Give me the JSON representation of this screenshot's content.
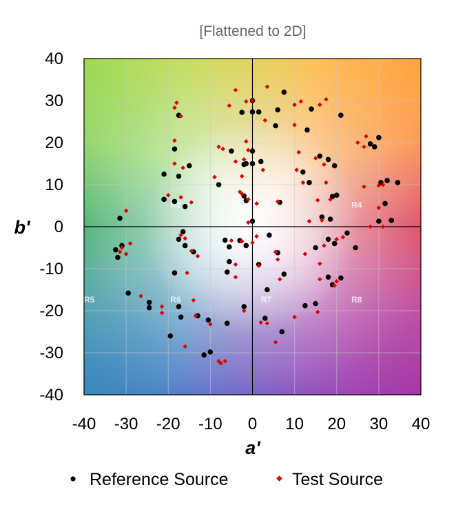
{
  "chart_data": {
    "type": "scatter",
    "title": "",
    "subtitle": "[Flattened to 2D]",
    "xlabel": "a'",
    "ylabel": "b'",
    "xlim": [
      -40,
      40
    ],
    "ylim": [
      -40,
      40
    ],
    "xticks": [
      "-40",
      "-30",
      "-20",
      "-10",
      "0",
      "10",
      "20",
      "30",
      "40"
    ],
    "yticks": [
      "40",
      "30",
      "20",
      "10",
      "0",
      "-10",
      "-20",
      "-30",
      "-40"
    ],
    "grid": true,
    "legend_position": "bottom",
    "region_labels": [
      {
        "text": "R2",
        "x": -19.5,
        "y": 4.5
      },
      {
        "text": "R3",
        "x": 1,
        "y": 4.5
      },
      {
        "text": "R4",
        "x": 23.5,
        "y": 4.5
      },
      {
        "text": "R5",
        "x": -40,
        "y": -18
      },
      {
        "text": "R6",
        "x": -19.5,
        "y": -18
      },
      {
        "text": "R7",
        "x": 2,
        "y": -18
      },
      {
        "text": "R8",
        "x": 23.5,
        "y": -18
      }
    ],
    "series": [
      {
        "name": "Reference Source",
        "marker": "circle",
        "color": "#000000",
        "points": [
          [
            7.5,
            32
          ],
          [
            0,
            30
          ],
          [
            -2.5,
            27.2
          ],
          [
            0,
            27.3
          ],
          [
            1.5,
            27.3
          ],
          [
            6,
            27.8
          ],
          [
            14,
            28
          ],
          [
            21,
            26.5
          ],
          [
            -17.5,
            26.5
          ],
          [
            13,
            23
          ],
          [
            5.5,
            24
          ],
          [
            28,
            19.7
          ],
          [
            30,
            21.2
          ],
          [
            29,
            19
          ],
          [
            -5,
            18
          ],
          [
            -18.5,
            18.5
          ],
          [
            0,
            18
          ],
          [
            -15,
            14.5
          ],
          [
            -2,
            14.8
          ],
          [
            -1.5,
            15
          ],
          [
            0,
            15
          ],
          [
            2,
            15.5
          ],
          [
            16,
            16.8
          ],
          [
            18,
            16
          ],
          [
            19.5,
            14.5
          ],
          [
            -21,
            12.5
          ],
          [
            -17.5,
            12
          ],
          [
            -8,
            10
          ],
          [
            12,
            13
          ],
          [
            13.5,
            10.5
          ],
          [
            30.5,
            10.5
          ],
          [
            32,
            11
          ],
          [
            34.5,
            10.5
          ],
          [
            -21,
            6.5
          ],
          [
            -18.5,
            6
          ],
          [
            -16,
            4.8
          ],
          [
            -2,
            7.3
          ],
          [
            -1.5,
            6.2
          ],
          [
            6.5,
            5.8
          ],
          [
            19,
            7.2
          ],
          [
            20,
            7.5
          ],
          [
            31.5,
            5.5
          ],
          [
            -31.5,
            2
          ],
          [
            0,
            1.3
          ],
          [
            16.5,
            2.3
          ],
          [
            18.5,
            1.8
          ],
          [
            33,
            1.5
          ],
          [
            30,
            1.3
          ],
          [
            -16.5,
            -1.2
          ],
          [
            -17.5,
            -3
          ],
          [
            -16,
            -4.5
          ],
          [
            -6.5,
            -3.2
          ],
          [
            -5.5,
            -4.8
          ],
          [
            -3,
            -3.3
          ],
          [
            -1.5,
            -4.5
          ],
          [
            4,
            -2
          ],
          [
            15,
            -5
          ],
          [
            18,
            -3
          ],
          [
            19.5,
            -4
          ],
          [
            22.5,
            -1.5
          ],
          [
            24.5,
            -5
          ],
          [
            -14,
            -6
          ],
          [
            6,
            -6.2
          ],
          [
            -32.5,
            -5.5
          ],
          [
            -31,
            -4.5
          ],
          [
            -32,
            -7.3
          ],
          [
            -5.5,
            -8.3
          ],
          [
            -18.5,
            -11
          ],
          [
            -6,
            -10.8
          ],
          [
            1.5,
            -9
          ],
          [
            7.5,
            -11.3
          ],
          [
            18,
            -12
          ],
          [
            21,
            -12.2
          ],
          [
            19,
            -13.8
          ],
          [
            3.5,
            -15
          ],
          [
            -29.5,
            -15.8
          ],
          [
            -24.5,
            -18
          ],
          [
            -24.5,
            -19.3
          ],
          [
            -2,
            -19
          ],
          [
            -17.5,
            -19
          ],
          [
            -13,
            -21.2
          ],
          [
            -17,
            -21.5
          ],
          [
            3,
            -21.8
          ],
          [
            15,
            -18.3
          ],
          [
            12.5,
            -18.8
          ],
          [
            -6,
            -23
          ],
          [
            -10.5,
            -22.2
          ],
          [
            7,
            -25
          ],
          [
            -19.5,
            -26
          ],
          [
            -10,
            -29.8
          ],
          [
            -11.5,
            -30.5
          ]
        ]
      },
      {
        "name": "Test Source",
        "marker": "diamond",
        "color": "#e00000",
        "points": [
          [
            -4,
            32.5
          ],
          [
            3.5,
            33.3
          ],
          [
            -1.5,
            29.8
          ],
          [
            0,
            30
          ],
          [
            -5.5,
            28.8
          ],
          [
            10,
            29
          ],
          [
            11.5,
            29.8
          ],
          [
            16,
            29
          ],
          [
            17.5,
            30.3
          ],
          [
            -18,
            29.5
          ],
          [
            -18.5,
            28.3
          ],
          [
            3,
            25.3
          ],
          [
            -17,
            26.3
          ],
          [
            10,
            24.2
          ],
          [
            27,
            21.5
          ],
          [
            25,
            20
          ],
          [
            26.5,
            19
          ],
          [
            -18.5,
            20.5
          ],
          [
            -8,
            19
          ],
          [
            -7,
            18.5
          ],
          [
            -1.5,
            20.3
          ],
          [
            -1,
            18.2
          ],
          [
            11,
            17.7
          ],
          [
            15,
            16.3
          ],
          [
            17,
            14.8
          ],
          [
            -18.5,
            15
          ],
          [
            -16.5,
            14
          ],
          [
            -4,
            15.5
          ],
          [
            -2,
            16
          ],
          [
            2.5,
            13.5
          ],
          [
            -9,
            11.8
          ],
          [
            -2.5,
            12
          ],
          [
            10.5,
            13.5
          ],
          [
            12,
            10.5
          ],
          [
            17.5,
            10.5
          ],
          [
            26.5,
            9.5
          ],
          [
            30,
            9.8
          ],
          [
            31,
            10
          ],
          [
            -20,
            7.5
          ],
          [
            -17,
            7
          ],
          [
            -14.5,
            5.8
          ],
          [
            -3,
            8.3
          ],
          [
            -2.5,
            7.8
          ],
          [
            -1,
            6.5
          ],
          [
            1,
            5.5
          ],
          [
            6,
            6
          ],
          [
            15.5,
            6.3
          ],
          [
            18.5,
            6.5
          ],
          [
            30,
            4.5
          ],
          [
            -30,
            3.8
          ],
          [
            -1,
            1
          ],
          [
            13.5,
            1.3
          ],
          [
            16.5,
            1.5
          ],
          [
            28,
            0
          ],
          [
            31,
            0
          ],
          [
            -17,
            -2
          ],
          [
            -16,
            -2.8
          ],
          [
            -5,
            -3.3
          ],
          [
            -2.5,
            -3.5
          ],
          [
            0,
            -3.8
          ],
          [
            1,
            -2.3
          ],
          [
            -13,
            -7
          ],
          [
            -14.5,
            -5.8
          ],
          [
            5.5,
            -6
          ],
          [
            6,
            -7.8
          ],
          [
            12.5,
            -6.5
          ],
          [
            16,
            -8.8
          ],
          [
            17,
            -4.5
          ],
          [
            20,
            -3
          ],
          [
            21.5,
            -2.5
          ],
          [
            -31,
            -5
          ],
          [
            -29,
            -4
          ],
          [
            -31.5,
            -6
          ],
          [
            -30,
            -6.5
          ],
          [
            -4,
            -9
          ],
          [
            -15.5,
            -11
          ],
          [
            -4,
            -12
          ],
          [
            1.5,
            -9.3
          ],
          [
            6.5,
            -12.5
          ],
          [
            16,
            -12.5
          ],
          [
            19.5,
            -14
          ],
          [
            20,
            -13
          ],
          [
            -26.5,
            -16.5
          ],
          [
            -21.5,
            -19
          ],
          [
            -21.5,
            -20.5
          ],
          [
            -14,
            -17.5
          ],
          [
            -13.5,
            -21.2
          ],
          [
            -10,
            -23.2
          ],
          [
            -2,
            -20
          ],
          [
            2,
            -22.8
          ],
          [
            3.5,
            -23
          ],
          [
            10,
            -21.5
          ],
          [
            15.5,
            -20.3
          ],
          [
            -16,
            -28.5
          ],
          [
            -8,
            -32
          ],
          [
            -7.5,
            -32.5
          ],
          [
            -6.5,
            -32
          ],
          [
            5.5,
            -27.5
          ]
        ]
      }
    ]
  },
  "colors": {
    "axis": "#000000",
    "grid": "#c8c8c8"
  }
}
